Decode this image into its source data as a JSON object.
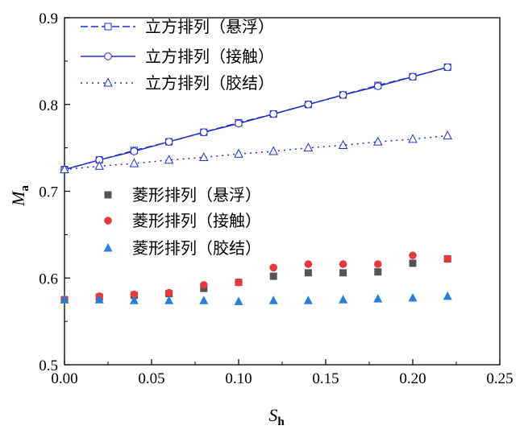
{
  "chart_data": {
    "type": "scatter",
    "xlabel": {
      "main": "S",
      "sub": "h"
    },
    "ylabel": {
      "main": "M",
      "sub": "a"
    },
    "xlim": [
      0,
      0.25
    ],
    "ylim": [
      0.5,
      0.9
    ],
    "x_ticks": [
      "0.00",
      "0.05",
      "0.10",
      "0.15",
      "0.20",
      "0.25"
    ],
    "y_ticks": [
      "0.5",
      "0.6",
      "0.7",
      "0.8",
      "0.9"
    ],
    "grid": false,
    "legend_upper": "top-left",
    "legend_lower": "middle-left",
    "series": [
      {
        "name": "立方排列（悬浮）",
        "style": "dashed-line-open-square",
        "color": "#1f2fc9",
        "x": [
          0.0,
          0.02,
          0.04,
          0.06,
          0.08,
          0.1,
          0.12,
          0.14,
          0.16,
          0.18,
          0.2,
          0.22
        ],
        "y": [
          0.725,
          0.736,
          0.747,
          0.757,
          0.768,
          0.779,
          0.789,
          0.8,
          0.811,
          0.822,
          0.832,
          0.843
        ]
      },
      {
        "name": "立方排列（接触）",
        "style": "solid-line-open-circle",
        "color": "#1f2fc9",
        "x": [
          0.0,
          0.02,
          0.04,
          0.06,
          0.08,
          0.1,
          0.12,
          0.14,
          0.16,
          0.18,
          0.2,
          0.22
        ],
        "y": [
          0.725,
          0.736,
          0.746,
          0.757,
          0.768,
          0.778,
          0.789,
          0.8,
          0.811,
          0.821,
          0.832,
          0.843
        ]
      },
      {
        "name": "立方排列（胶结）",
        "style": "dotted-line-open-triangle",
        "color": "#1f2fc9",
        "x": [
          0.0,
          0.02,
          0.04,
          0.06,
          0.08,
          0.1,
          0.12,
          0.14,
          0.16,
          0.18,
          0.2,
          0.22
        ],
        "y": [
          0.725,
          0.729,
          0.732,
          0.736,
          0.739,
          0.743,
          0.746,
          0.75,
          0.753,
          0.757,
          0.76,
          0.764
        ]
      },
      {
        "name": "菱形排列（悬浮）",
        "style": "filled-square",
        "color": "#555555",
        "x": [
          0.0,
          0.02,
          0.04,
          0.06,
          0.08,
          0.1,
          0.12,
          0.14,
          0.16,
          0.18,
          0.2,
          0.22
        ],
        "y": [
          0.575,
          0.578,
          0.58,
          0.582,
          0.588,
          0.595,
          0.602,
          0.606,
          0.606,
          0.607,
          0.617,
          0.622
        ]
      },
      {
        "name": "菱形排列（接触）",
        "style": "filled-circle",
        "color": "#e8393c",
        "x": [
          0.0,
          0.02,
          0.04,
          0.06,
          0.08,
          0.1,
          0.12,
          0.14,
          0.16,
          0.18,
          0.2,
          0.22
        ],
        "y": [
          0.575,
          0.579,
          0.581,
          0.583,
          0.592,
          0.595,
          0.612,
          0.616,
          0.616,
          0.616,
          0.626,
          0.622
        ]
      },
      {
        "name": "菱形排列（胶结）",
        "style": "filled-triangle",
        "color": "#2a7fd6",
        "x": [
          0.0,
          0.02,
          0.04,
          0.06,
          0.08,
          0.1,
          0.12,
          0.14,
          0.16,
          0.18,
          0.2,
          0.22
        ],
        "y": [
          0.575,
          0.575,
          0.574,
          0.574,
          0.574,
          0.573,
          0.574,
          0.574,
          0.575,
          0.576,
          0.577,
          0.579
        ]
      }
    ]
  }
}
